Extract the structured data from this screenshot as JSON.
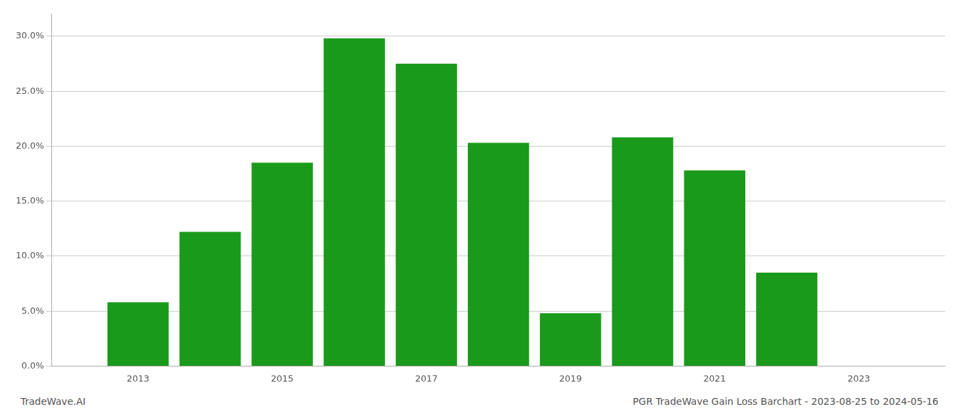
{
  "chart_data": {
    "type": "bar",
    "title": "PGR TradeWave Gain Loss Barchart - 2023-08-25 to 2024-05-16",
    "annotations": [
      "TradeWave.AI"
    ],
    "x": [
      2013,
      2014,
      2015,
      2016,
      2017,
      2018,
      2019,
      2020,
      2021,
      2022
    ],
    "values": [
      0.058,
      0.122,
      0.185,
      0.298,
      0.275,
      0.203,
      0.048,
      0.208,
      0.178,
      0.085
    ],
    "color": "#1a9a1a",
    "xlim": [
      2011.8,
      2024.2
    ],
    "xticks": [
      2013,
      2015,
      2017,
      2019,
      2021,
      2023
    ],
    "ylim": [
      0,
      0.32
    ],
    "yticks": [
      {
        "value": 0.0,
        "label": "0.0%"
      },
      {
        "value": 0.05,
        "label": "5.0%"
      },
      {
        "value": 0.1,
        "label": "10.0%"
      },
      {
        "value": 0.15,
        "label": "15.0%"
      },
      {
        "value": 0.2,
        "label": "20.0%"
      },
      {
        "value": 0.25,
        "label": "25.0%"
      },
      {
        "value": 0.3,
        "label": "30.0%"
      }
    ],
    "grid": true
  }
}
